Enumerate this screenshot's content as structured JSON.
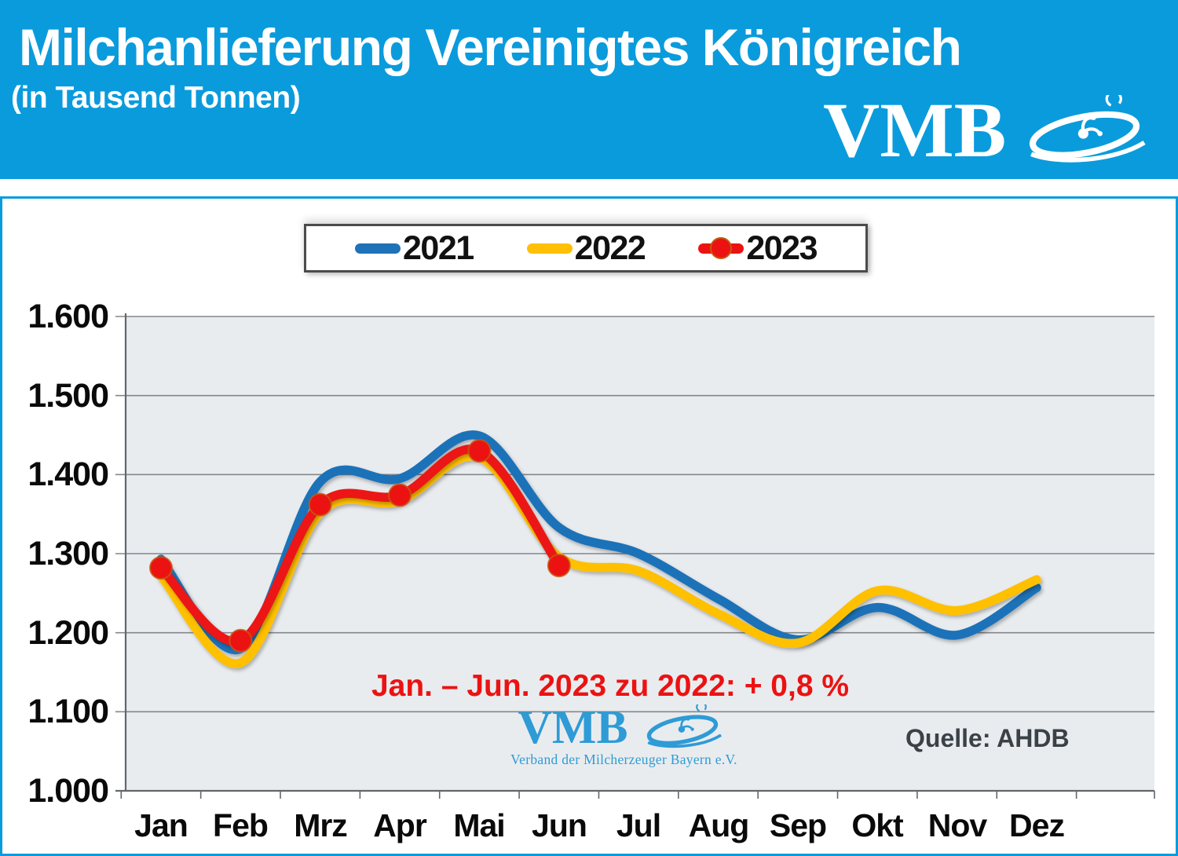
{
  "header": {
    "title": "Milchanlieferung Vereinigtes Königreich",
    "subtitle": "(in Tausend Tonnen)",
    "logo_text": "VMB",
    "bg_color": "#0A9BDC",
    "text_color": "#FFFFFF"
  },
  "watermark": {
    "logo_text": "VMB",
    "caption": "Verband der Milcherzeuger Bayern e.V.",
    "color": "#2E9BD6"
  },
  "chart_data": {
    "type": "line",
    "title": "Milchanlieferung Vereinigtes Königreich (in Tausend Tonnen)",
    "unit": "Tausend Tonnen",
    "categories": [
      "Jan",
      "Feb",
      "Mrz",
      "Apr",
      "Mai",
      "Jun",
      "Jul",
      "Aug",
      "Sep",
      "Okt",
      "Nov",
      "Dez"
    ],
    "y_ticks": [
      "1.600",
      "1.500",
      "1.400",
      "1.300",
      "1.200",
      "1.100",
      "1.000"
    ],
    "ylim": [
      1000,
      1600
    ],
    "grid": "horizontal",
    "legend_position": "top-center",
    "plot_bg": "#E9ECEF",
    "gridline_color": "#83878B",
    "axis_color": "#63676C",
    "series": [
      {
        "name": "2021",
        "color": "#1F72B8",
        "marker": "none",
        "values": [
          1293,
          1180,
          1391,
          1395,
          1449,
          1333,
          1300,
          1243,
          1191,
          1232,
          1197,
          1257
        ]
      },
      {
        "name": "2022",
        "color": "#FFC003",
        "marker": "none",
        "values": [
          1272,
          1162,
          1352,
          1367,
          1422,
          1296,
          1278,
          1224,
          1187,
          1253,
          1228,
          1267
        ]
      },
      {
        "name": "2023",
        "color": "#EC1212",
        "marker": "circle",
        "marker_outline": "#C55A11",
        "values": [
          1282,
          1190,
          1362,
          1374,
          1430,
          1285
        ]
      }
    ],
    "annotation": {
      "text": "Jan. – Jun. 2023 zu 2022: + 0,8 %",
      "color": "#EC1212"
    },
    "source": {
      "text": "Quelle: AHDB",
      "color": "#3A4247"
    }
  }
}
